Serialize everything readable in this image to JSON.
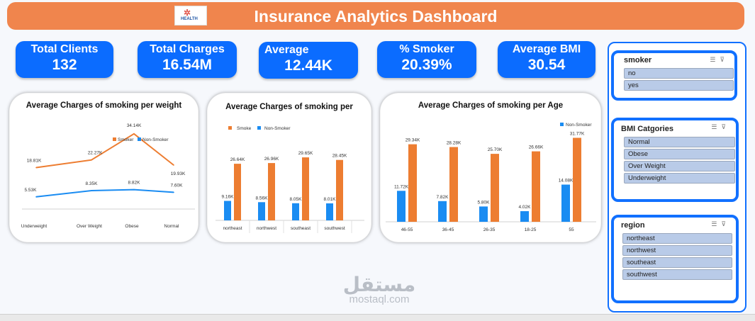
{
  "header": {
    "title": "Insurance Analytics Dashboard",
    "logo_text": "HEALTH"
  },
  "kpis": [
    {
      "label": "Total Clients",
      "value": "132"
    },
    {
      "label": "Total Charges",
      "value": "16.54M"
    },
    {
      "label": "Average",
      "value": "12.44K"
    },
    {
      "label": "% Smoker",
      "value": "20.39%"
    },
    {
      "label": "Average BMI",
      "value": "30.54"
    }
  ],
  "colors": {
    "smoker": "#ed7d31",
    "non_smoker": "#1a8cf2",
    "kpi": "#0b6cff",
    "header": "#f0854d",
    "slicer_border": "#1170ff"
  },
  "chart_data": [
    {
      "type": "line",
      "title": "Average Charges of smoking per weight",
      "categories": [
        "Underweight",
        "Over Weight",
        "Obese",
        "Normal"
      ],
      "series": [
        {
          "name": "Smoker",
          "values": [
            18.81,
            22.27,
            34.14,
            19.93
          ],
          "labels": [
            "18.81K",
            "22.27K",
            "34.14K",
            "19.93K"
          ]
        },
        {
          "name": "Non-Smoker",
          "values": [
            5.53,
            8.35,
            8.82,
            7.6
          ],
          "labels": [
            "5.53K",
            "8.35K",
            "8.82K",
            "7.60K"
          ]
        }
      ],
      "legend": "top-right"
    },
    {
      "type": "bar",
      "title": "Average Charges of smoking per",
      "categories": [
        "northeast",
        "northwest",
        "southeast",
        "southwest"
      ],
      "series": [
        {
          "name": "Non-Smoker",
          "values": [
            9.16,
            8.56,
            8.05,
            8.01
          ],
          "labels": [
            "9.16K",
            "8.56K",
            "8.05K",
            "8.01K"
          ]
        },
        {
          "name": "Smoke",
          "values": [
            26.64,
            26.96,
            29.65,
            28.45
          ],
          "labels": [
            "26.64K",
            "26.96K",
            "29.65K",
            "28.45K"
          ]
        }
      ],
      "legend": "top-left"
    },
    {
      "type": "bar",
      "title": "Average Charges of smoking per Age",
      "categories": [
        "46-55",
        "36-45",
        "26-35",
        "18-25",
        "55"
      ],
      "series": [
        {
          "name": "Non-Smoker",
          "values": [
            11.72,
            7.82,
            5.8,
            4.02,
            14.08
          ],
          "labels": [
            "11.72K",
            "7.82K",
            "5.80K",
            "4.02K",
            "14.08K"
          ]
        },
        {
          "name": "",
          "values": [
            29.34,
            28.28,
            25.7,
            26.66,
            31.77
          ],
          "labels": [
            "29.34K",
            "28.28K",
            "25.70K",
            "26.66K",
            "31.77K"
          ]
        }
      ],
      "legend": "top-right"
    }
  ],
  "slicers": [
    {
      "title": "smoker",
      "items": [
        "no",
        "yes"
      ]
    },
    {
      "title": "BMI Catgories",
      "items": [
        "Normal",
        "Obese",
        "Over Weight",
        "Underweight"
      ]
    },
    {
      "title": "region",
      "items": [
        "northeast",
        "northwest",
        "southeast",
        "southwest"
      ]
    }
  ],
  "watermark": {
    "brand_ar": "مستقل",
    "brand_url": "mostaql.com"
  }
}
